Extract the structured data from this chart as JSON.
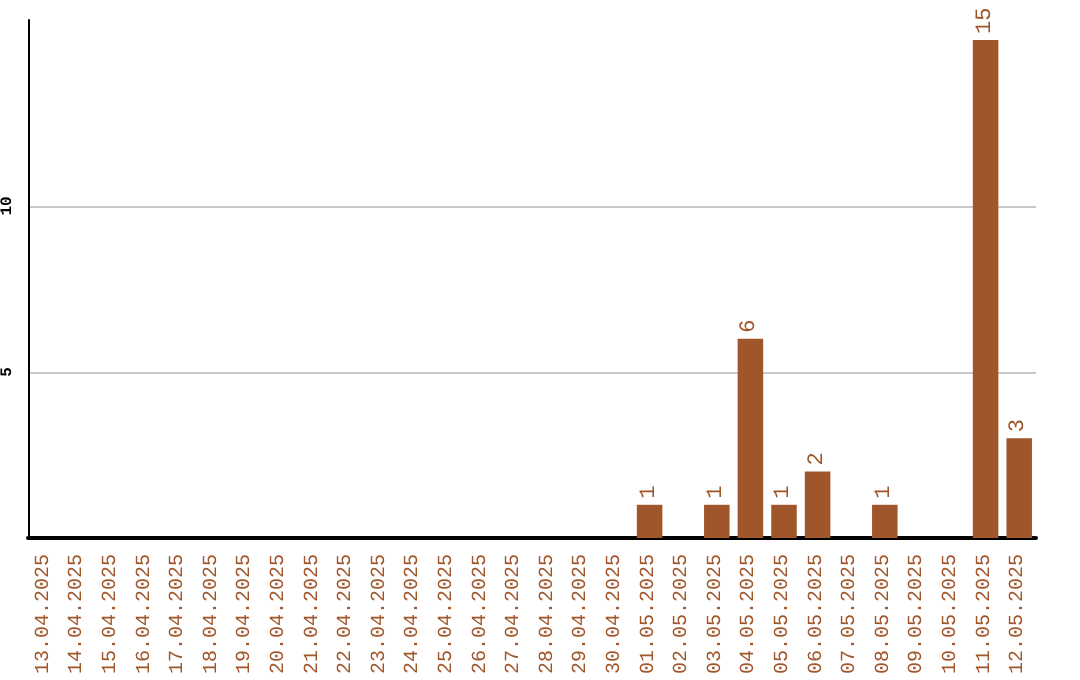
{
  "chart_data": {
    "type": "bar",
    "categories": [
      "13.04.2025",
      "14.04.2025",
      "15.04.2025",
      "16.04.2025",
      "17.04.2025",
      "18.04.2025",
      "19.04.2025",
      "20.04.2025",
      "21.04.2025",
      "22.04.2025",
      "23.04.2025",
      "24.04.2025",
      "25.04.2025",
      "26.04.2025",
      "27.04.2025",
      "28.04.2025",
      "29.04.2025",
      "30.04.2025",
      "01.05.2025",
      "02.05.2025",
      "03.05.2025",
      "04.05.2025",
      "05.05.2025",
      "06.05.2025",
      "07.05.2025",
      "08.05.2025",
      "09.05.2025",
      "10.05.2025",
      "11.05.2025",
      "12.05.2025"
    ],
    "values": [
      0,
      0,
      0,
      0,
      0,
      0,
      0,
      0,
      0,
      0,
      0,
      0,
      0,
      0,
      0,
      0,
      0,
      0,
      1,
      0,
      1,
      6,
      1,
      2,
      0,
      1,
      0,
      0,
      15,
      3
    ],
    "value_labels": [
      null,
      null,
      null,
      null,
      null,
      null,
      null,
      null,
      null,
      null,
      null,
      null,
      null,
      null,
      null,
      null,
      null,
      null,
      "1",
      null,
      "1",
      "6",
      "1",
      "2",
      null,
      "1",
      null,
      null,
      "15",
      "3"
    ],
    "color": "#a0562a",
    "ylim": [
      0,
      15.6
    ],
    "yticks": [
      5,
      10
    ],
    "grid": "y"
  }
}
